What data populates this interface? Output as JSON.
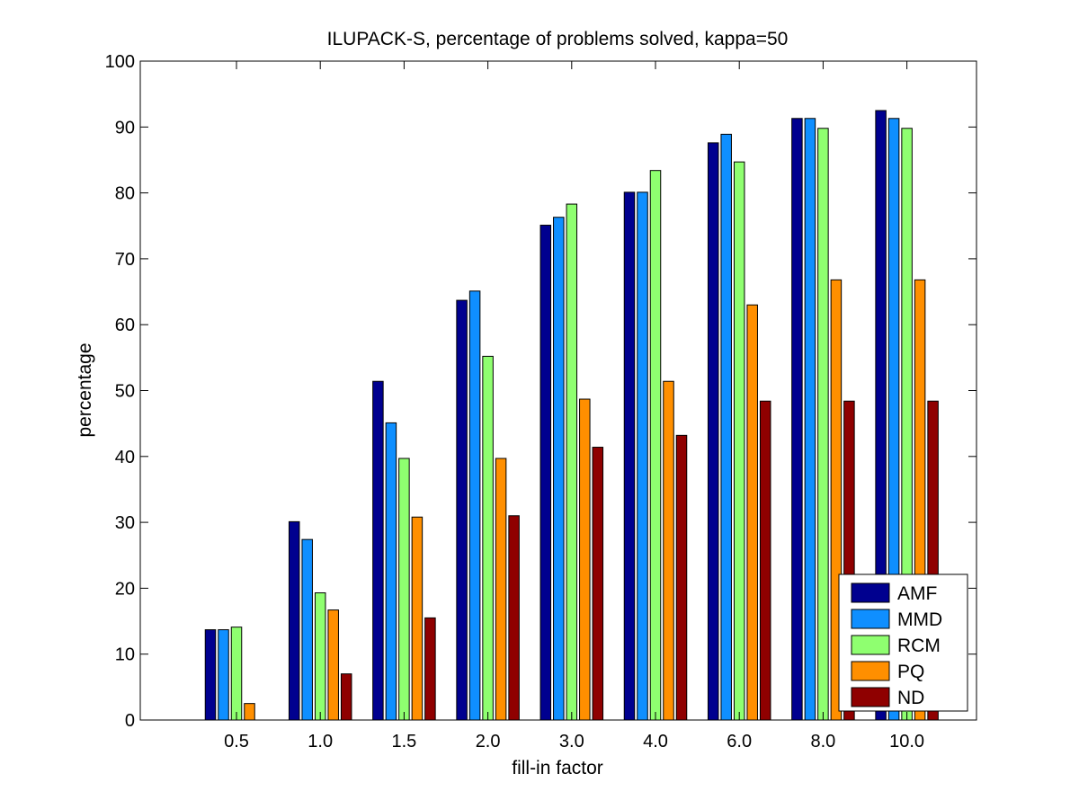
{
  "chart_data": {
    "type": "bar",
    "title": "ILUPACK-S, percentage of problems solved, kappa=50",
    "xlabel": "fill-in factor",
    "ylabel": "percentage",
    "ylim": [
      0,
      100
    ],
    "yticks": [
      "0",
      "10",
      "20",
      "30",
      "40",
      "50",
      "60",
      "70",
      "80",
      "90",
      "100"
    ],
    "categories": [
      "0.5",
      "1.0",
      "1.5",
      "2.0",
      "3.0",
      "4.0",
      "6.0",
      "8.0",
      "10.0"
    ],
    "series": [
      {
        "name": "AMF",
        "color": "#00008f",
        "values": [
          13.7,
          30.1,
          51.4,
          63.7,
          75.1,
          80.1,
          87.6,
          91.3,
          92.5
        ]
      },
      {
        "name": "MMD",
        "color": "#0f8fff",
        "values": [
          13.7,
          27.4,
          45.1,
          65.1,
          76.3,
          80.1,
          88.9,
          91.3,
          91.3
        ]
      },
      {
        "name": "RCM",
        "color": "#8fff70",
        "values": [
          14.1,
          19.3,
          39.7,
          55.2,
          78.3,
          83.4,
          84.7,
          89.8,
          89.8
        ]
      },
      {
        "name": "PQ",
        "color": "#ff8f00",
        "values": [
          2.5,
          16.7,
          30.8,
          39.7,
          48.7,
          51.4,
          63.0,
          66.8,
          66.8
        ]
      },
      {
        "name": "ND",
        "color": "#8f0000",
        "values": [
          0,
          7.0,
          15.5,
          31.0,
          41.4,
          43.2,
          48.4,
          48.4,
          48.4
        ]
      }
    ],
    "grid": false,
    "legend_position": "bottom-right"
  }
}
